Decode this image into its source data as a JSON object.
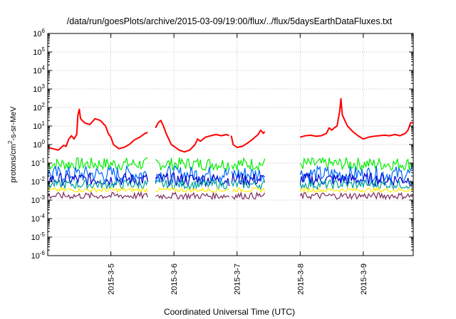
{
  "chart_data": {
    "type": "line",
    "title": "/data/run/goesPlots/archive/2015-03-09/19:00/flux/../flux/5daysEarthDataFluxes.txt",
    "xlabel": "Coordinated Universal Time (UTC)",
    "ylabel": "protons/cm²-s-sr-MeV",
    "ylabel_base": "protons/cm",
    "ylabel_sup": "2",
    "ylabel_tail": "-s-sr-MeV",
    "yscale": "log",
    "ylim_exp": [
      -6,
      6
    ],
    "xlim": [
      "2015-03-04 00:00",
      "2015-03-09 19:00"
    ],
    "grid": true,
    "y_ticks": [
      {
        "base": "10",
        "exp": "-6"
      },
      {
        "base": "10",
        "exp": "-5"
      },
      {
        "base": "10",
        "exp": "-4"
      },
      {
        "base": "10",
        "exp": "-3"
      },
      {
        "base": "10",
        "exp": "-2"
      },
      {
        "base": "10",
        "exp": "-1"
      },
      {
        "base": "10",
        "exp": "0"
      },
      {
        "base": "10",
        "exp": "1"
      },
      {
        "base": "10",
        "exp": "2"
      },
      {
        "base": "10",
        "exp": "3"
      },
      {
        "base": "10",
        "exp": "4"
      },
      {
        "base": "10",
        "exp": "5"
      },
      {
        "base": "10",
        "exp": "6"
      }
    ],
    "x_ticks": [
      "2015-3-5",
      "2015-3-6",
      "2015-3-7",
      "2015-3-8",
      "2015-3-9"
    ],
    "x_tick_hours": [
      24,
      48,
      72,
      96,
      120
    ],
    "gaps_hours": [
      [
        38,
        41
      ],
      [
        69,
        69.8
      ],
      [
        82.5,
        96
      ]
    ],
    "series": [
      {
        "color": "#ff0000",
        "points": [
          [
            0,
            0.7
          ],
          [
            2,
            0.6
          ],
          [
            4,
            0.5
          ],
          [
            6,
            0.9
          ],
          [
            7,
            0.8
          ],
          [
            8,
            2.0
          ],
          [
            9,
            3.0
          ],
          [
            10,
            2.0
          ],
          [
            11,
            3.5
          ],
          [
            11.5,
            40
          ],
          [
            12,
            80
          ],
          [
            12.5,
            25
          ],
          [
            14,
            15
          ],
          [
            16,
            12
          ],
          [
            18,
            25
          ],
          [
            20,
            20
          ],
          [
            22,
            10
          ],
          [
            23,
            4
          ],
          [
            24,
            2.5
          ],
          [
            25,
            1.0
          ],
          [
            27,
            0.6
          ],
          [
            29,
            0.7
          ],
          [
            31,
            1.0
          ],
          [
            33,
            1.8
          ],
          [
            35,
            2.5
          ],
          [
            37,
            4.0
          ],
          [
            38,
            4.5
          ],
          [
            41,
            8
          ],
          [
            42,
            15
          ],
          [
            43,
            20
          ],
          [
            44,
            10
          ],
          [
            45,
            4
          ],
          [
            46,
            2
          ],
          [
            47,
            1.0
          ],
          [
            48,
            0.8
          ],
          [
            50,
            0.5
          ],
          [
            52,
            0.4
          ],
          [
            54,
            0.5
          ],
          [
            56,
            1.0
          ],
          [
            57,
            2
          ],
          [
            58,
            1.5
          ],
          [
            60,
            2.5
          ],
          [
            62,
            3.0
          ],
          [
            64,
            3.5
          ],
          [
            66,
            3.0
          ],
          [
            68,
            3.5
          ],
          [
            69,
            3.0
          ],
          [
            69.8,
            3.0
          ],
          [
            70.5,
            1.0
          ],
          [
            72,
            0.7
          ],
          [
            74,
            0.8
          ],
          [
            76,
            1.2
          ],
          [
            78,
            2.0
          ],
          [
            80,
            3.5
          ],
          [
            81,
            6
          ],
          [
            82,
            4.0
          ],
          [
            82.5,
            5
          ],
          [
            96,
            2.5
          ],
          [
            98,
            3.0
          ],
          [
            100,
            3.2
          ],
          [
            102,
            2.8
          ],
          [
            104,
            3.0
          ],
          [
            106,
            4.0
          ],
          [
            107,
            8
          ],
          [
            108,
            6
          ],
          [
            109,
            8
          ],
          [
            110,
            10
          ],
          [
            111,
            60
          ],
          [
            111.5,
            300
          ],
          [
            112,
            40
          ],
          [
            113,
            20
          ],
          [
            114,
            10
          ],
          [
            116,
            5
          ],
          [
            118,
            3
          ],
          [
            120,
            2
          ],
          [
            122,
            2.5
          ],
          [
            124,
            2.8
          ],
          [
            126,
            3.0
          ],
          [
            128,
            3.2
          ],
          [
            130,
            3.0
          ],
          [
            132,
            3.5
          ],
          [
            134,
            3.0
          ],
          [
            136,
            4
          ],
          [
            137,
            6
          ],
          [
            138,
            15
          ],
          [
            139,
            15
          ]
        ]
      },
      {
        "color": "#00ee00",
        "level": 0.09,
        "amp": 0.35
      },
      {
        "color": "#0066ff",
        "level": 0.025,
        "amp": 0.45
      },
      {
        "color": "#0000cc",
        "level": 0.013,
        "amp": 0.35
      },
      {
        "color": "#00a0a0",
        "level": 0.007,
        "amp": 0.25
      },
      {
        "color": "#ffee00",
        "level": 0.0035,
        "amp": 0.12
      },
      {
        "color": "#7a2a60",
        "level": 0.0017,
        "amp": 0.18
      }
    ]
  }
}
